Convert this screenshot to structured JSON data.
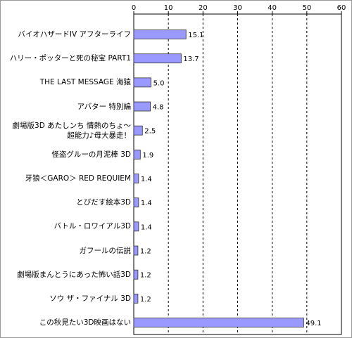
{
  "chart_data": {
    "type": "bar",
    "orientation": "horizontal",
    "categories": [
      "バイオハザードIV アフターライフ",
      "ハリー・ポッターと死の秘宝 PART1",
      "THE LAST MESSAGE 海猿",
      "アバター 特別編",
      "劇場版3D あたしンち 情熱のちょ〜\n超能力♪母大暴走！",
      "怪盗グルーの月泥棒 3D",
      "牙狼＜GARO＞ RED REQUIEM",
      "とびだす絵本3D",
      "バトル・ロワイアル3D",
      "ガフールの伝説",
      "劇場版まんとうにあった怖い話3D",
      "ソウ ザ・ファイナル 3D",
      "この秋見たい3D映画はない"
    ],
    "values": [
      15.1,
      13.7,
      5.0,
      4.8,
      2.5,
      1.9,
      1.4,
      1.4,
      1.4,
      1.2,
      1.2,
      1.2,
      49.1
    ],
    "value_labels": [
      "15.1",
      "13.7",
      "5.0",
      "4.8",
      "2.5",
      "1.9",
      "1.4",
      "1.4",
      "1.4",
      "1.2",
      "1.2",
      "1.2",
      "49.1"
    ],
    "color": "#9999ff",
    "xlim": [
      0,
      60
    ],
    "xticks": [
      0,
      10,
      20,
      30,
      40,
      50,
      60
    ],
    "grid": true
  }
}
